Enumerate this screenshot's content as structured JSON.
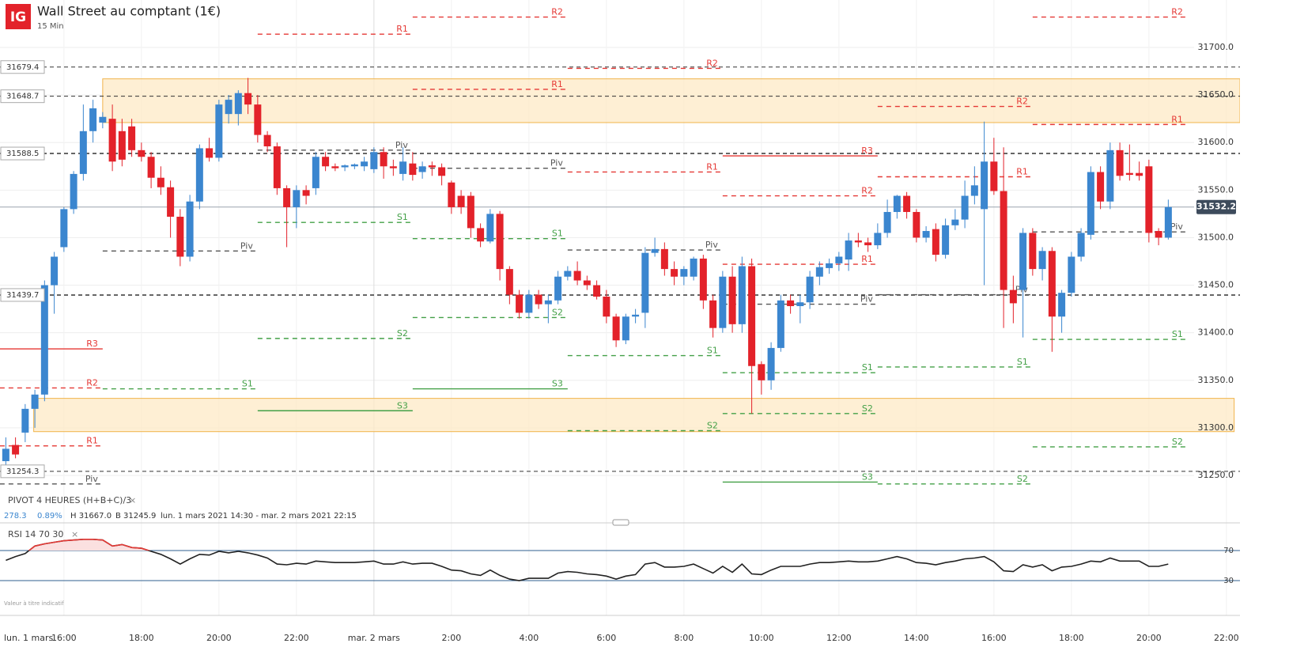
{
  "chart_data": {
    "type": "candlestick",
    "logo": "IG",
    "title": "Wall Street au comptant (1€)",
    "subtitle": "15 Min",
    "start_label": "lun. 1 mars",
    "indicator": "PIVOT 4 HEURES (H+B+C)/3",
    "stats": [
      "278.3",
      "0.89%",
      "H 31667.0",
      "B 31245.9",
      "lun. 1 mars 2021 14:30 - mar. 2 mars 2021 22:15"
    ],
    "footnote": "Valeur à titre indicatif",
    "colors": {
      "up": "#3b86cf",
      "down": "#e3222a",
      "R": "#e53935",
      "S": "#43a047",
      "P": "#555555"
    },
    "xlim": [
      14.35,
      46.35
    ],
    "xticks": [
      {
        "value": 16,
        "label": "16:00"
      },
      {
        "value": 18,
        "label": "18:00"
      },
      {
        "value": 20,
        "label": "20:00"
      },
      {
        "value": 22,
        "label": "22:00"
      },
      {
        "value": 24,
        "label": "mar. 2 mars"
      },
      {
        "value": 26,
        "label": "2:00"
      },
      {
        "value": 28,
        "label": "4:00"
      },
      {
        "value": 30,
        "label": "6:00"
      },
      {
        "value": 32,
        "label": "8:00"
      },
      {
        "value": 34,
        "label": "10:00"
      },
      {
        "value": 36,
        "label": "12:00"
      },
      {
        "value": 38,
        "label": "14:00"
      },
      {
        "value": 40,
        "label": "16:00"
      },
      {
        "value": 42,
        "label": "18:00"
      },
      {
        "value": 44,
        "label": "20:00"
      },
      {
        "value": 46,
        "label": "22:00"
      }
    ],
    "ylim": [
      31234.2,
      31749.9
    ],
    "yticks": [
      {
        "value": 31250,
        "label": "31250.0"
      },
      {
        "value": 31300,
        "label": "31300.0"
      },
      {
        "value": 31350,
        "label": "31350.0"
      },
      {
        "value": 31400,
        "label": "31400.0"
      },
      {
        "value": 31450,
        "label": "31450.0"
      },
      {
        "value": 31500,
        "label": "31500.0"
      },
      {
        "value": 31550,
        "label": "31550.0"
      },
      {
        "value": 31600,
        "label": "31600.0"
      },
      {
        "value": 31650,
        "label": "31650.0"
      },
      {
        "value": 31700,
        "label": "31700.0"
      }
    ],
    "grid": true,
    "x": [
      14.5,
      14.75,
      15,
      15.25,
      15.5,
      15.75,
      16,
      16.25,
      16.5,
      16.75,
      17,
      17.25,
      17.5,
      17.75,
      18,
      18.25,
      18.5,
      18.75,
      19,
      19.25,
      19.5,
      19.75,
      20,
      20.25,
      20.5,
      20.75,
      21,
      21.25,
      21.5,
      21.75,
      22,
      22.25,
      22.5,
      22.75,
      23,
      23.25,
      23.5,
      23.75,
      24,
      24.25,
      24.5,
      24.75,
      25,
      25.25,
      25.5,
      25.75,
      26,
      26.25,
      26.5,
      26.75,
      27,
      27.25,
      27.5,
      27.75,
      28,
      28.25,
      28.5,
      28.75,
      29,
      29.25,
      29.5,
      29.75,
      30,
      30.25,
      30.5,
      30.75,
      31,
      31.25,
      31.5,
      31.75,
      32,
      32.25,
      32.5,
      32.75,
      33,
      33.25,
      33.5,
      33.75,
      34,
      34.25,
      34.5,
      34.75,
      35,
      35.25,
      35.5,
      35.75,
      36,
      36.25,
      36.5,
      36.75,
      37,
      37.25,
      37.5,
      37.75,
      38,
      38.25,
      38.5,
      38.75,
      39,
      39.25,
      39.5,
      39.75,
      40,
      40.25,
      40.5,
      40.75,
      41,
      41.25,
      41.5,
      41.75,
      42,
      42.25,
      42.5,
      42.75,
      43,
      43.25,
      43.5,
      43.75,
      44,
      44.25,
      44.5
    ],
    "candles": [
      [
        31265,
        31290,
        31250,
        31278
      ],
      [
        31282,
        31290,
        31268,
        31272
      ],
      [
        31295,
        31325,
        31285,
        31320
      ],
      [
        31320,
        31340,
        31300,
        31335
      ],
      [
        31335,
        31455,
        31328,
        31450
      ],
      [
        31450,
        31485,
        31420,
        31480
      ],
      [
        31490,
        31532,
        31485,
        31530
      ],
      [
        31530,
        31570,
        31525,
        31567
      ],
      [
        31567,
        31640,
        31560,
        31612
      ],
      [
        31612,
        31645,
        31600,
        31636
      ],
      [
        31621,
        31632,
        31615,
        31627
      ],
      [
        31625,
        31640,
        31570,
        31580
      ],
      [
        31612,
        31625,
        31575,
        31582
      ],
      [
        31617,
        31625,
        31585,
        31592
      ],
      [
        31592,
        31600,
        31580,
        31585
      ],
      [
        31585,
        31590,
        31552,
        31563
      ],
      [
        31563,
        31575,
        31545,
        31553
      ],
      [
        31553,
        31560,
        31500,
        31522
      ],
      [
        31522,
        31530,
        31470,
        31480
      ],
      [
        31480,
        31545,
        31475,
        31538
      ],
      [
        31538,
        31598,
        31530,
        31594
      ],
      [
        31594,
        31605,
        31580,
        31584
      ],
      [
        31584,
        31645,
        31580,
        31640
      ],
      [
        31630,
        31650,
        31620,
        31645
      ],
      [
        31630,
        31655,
        31618,
        31652
      ],
      [
        31652,
        31668,
        31630,
        31640
      ],
      [
        31640,
        31650,
        31600,
        31608
      ],
      [
        31608,
        31612,
        31590,
        31596
      ],
      [
        31596,
        31600,
        31545,
        31552
      ],
      [
        31552,
        31555,
        31490,
        31532
      ],
      [
        31532,
        31555,
        31510,
        31550
      ],
      [
        31550,
        31555,
        31535,
        31544
      ],
      [
        31552,
        31590,
        31545,
        31585
      ],
      [
        31585,
        31590,
        31570,
        31575
      ],
      [
        31575,
        31578,
        31570,
        31573
      ],
      [
        31574,
        31577,
        31570,
        31576
      ],
      [
        31575,
        31578,
        31572,
        31577
      ],
      [
        31575,
        31585,
        31570,
        31580
      ],
      [
        31572,
        31595,
        31568,
        31590
      ],
      [
        31590,
        31595,
        31562,
        31575
      ],
      [
        31575,
        31582,
        31565,
        31573
      ],
      [
        31567,
        31595,
        31560,
        31580
      ],
      [
        31578,
        31590,
        31560,
        31566
      ],
      [
        31569,
        31580,
        31562,
        31575
      ],
      [
        31576,
        31580,
        31565,
        31574
      ],
      [
        31574,
        31578,
        31555,
        31565
      ],
      [
        31558,
        31560,
        31525,
        31532
      ],
      [
        31544,
        31550,
        31525,
        31532
      ],
      [
        31544,
        31548,
        31500,
        31510
      ],
      [
        31510,
        31515,
        31490,
        31496
      ],
      [
        31496,
        31530,
        31494,
        31525
      ],
      [
        31525,
        31528,
        31455,
        31467
      ],
      [
        31467,
        31470,
        31430,
        31440
      ],
      [
        31440,
        31445,
        31415,
        31421
      ],
      [
        31421,
        31445,
        31415,
        31440
      ],
      [
        31440,
        31445,
        31425,
        31430
      ],
      [
        31430,
        31440,
        31410,
        31434
      ],
      [
        31434,
        31465,
        31430,
        31459
      ],
      [
        31459,
        31470,
        31455,
        31465
      ],
      [
        31465,
        31475,
        31450,
        31455
      ],
      [
        31455,
        31460,
        31445,
        31450
      ],
      [
        31450,
        31455,
        31435,
        31438
      ],
      [
        31438,
        31445,
        31410,
        31417
      ],
      [
        31417,
        31420,
        31385,
        31392
      ],
      [
        31392,
        31420,
        31388,
        31417
      ],
      [
        31417,
        31425,
        31410,
        31419
      ],
      [
        31421,
        31490,
        31405,
        31484
      ],
      [
        31484,
        31500,
        31480,
        31488
      ],
      [
        31488,
        31495,
        31460,
        31467
      ],
      [
        31467,
        31475,
        31450,
        31459
      ],
      [
        31459,
        31470,
        31450,
        31467
      ],
      [
        31459,
        31480,
        31455,
        31478
      ],
      [
        31478,
        31482,
        31425,
        31434
      ],
      [
        31434,
        31440,
        31395,
        31405
      ],
      [
        31405,
        31465,
        31400,
        31459
      ],
      [
        31459,
        31470,
        31400,
        31409
      ],
      [
        31409,
        31480,
        31400,
        31470
      ],
      [
        31470,
        31478,
        31315,
        31365
      ],
      [
        31367,
        31370,
        31335,
        31350
      ],
      [
        31350,
        31390,
        31340,
        31384
      ],
      [
        31384,
        31440,
        31380,
        31434
      ],
      [
        31434,
        31440,
        31420,
        31428
      ],
      [
        31428,
        31440,
        31410,
        31432
      ],
      [
        31432,
        31465,
        31425,
        31459
      ],
      [
        31459,
        31475,
        31450,
        31469
      ],
      [
        31468,
        31478,
        31462,
        31473
      ],
      [
        31473,
        31485,
        31465,
        31480
      ],
      [
        31477,
        31505,
        31465,
        31497
      ],
      [
        31497,
        31505,
        31490,
        31495
      ],
      [
        31495,
        31500,
        31485,
        31492
      ],
      [
        31492,
        31515,
        31488,
        31505
      ],
      [
        31505,
        31540,
        31500,
        31527
      ],
      [
        31527,
        31545,
        31520,
        31544
      ],
      [
        31544,
        31548,
        31520,
        31527
      ],
      [
        31527,
        31530,
        31495,
        31500
      ],
      [
        31500,
        31512,
        31495,
        31507
      ],
      [
        31509,
        31515,
        31475,
        31482
      ],
      [
        31482,
        31520,
        31478,
        31513
      ],
      [
        31513,
        31530,
        31508,
        31519
      ],
      [
        31519,
        31560,
        31510,
        31544
      ],
      [
        31544,
        31575,
        31535,
        31555
      ],
      [
        31530,
        31622,
        31450,
        31580
      ],
      [
        31580,
        31605,
        31545,
        31549
      ],
      [
        31549,
        31595,
        31405,
        31445
      ],
      [
        31445,
        31460,
        31410,
        31431
      ],
      [
        31445,
        31510,
        31395,
        31505
      ],
      [
        31505,
        31510,
        31460,
        31467
      ],
      [
        31467,
        31490,
        31455,
        31486
      ],
      [
        31486,
        31490,
        31380,
        31417
      ],
      [
        31417,
        31445,
        31400,
        31442
      ],
      [
        31442,
        31485,
        31438,
        31480
      ],
      [
        31480,
        31510,
        31475,
        31505
      ],
      [
        31503,
        31575,
        31498,
        31569
      ],
      [
        31569,
        31575,
        31530,
        31538
      ],
      [
        31538,
        31600,
        31530,
        31592
      ],
      [
        31592,
        31600,
        31560,
        31565
      ],
      [
        31568,
        31598,
        31560,
        31566
      ],
      [
        31568,
        31580,
        31560,
        31565
      ],
      [
        31575,
        31582,
        31495,
        31505
      ],
      [
        31507,
        31510,
        31492,
        31500
      ],
      [
        31500,
        31540,
        31498,
        31532.2
      ]
    ],
    "zones": [
      {
        "from": 31621,
        "to": 31667,
        "start": 17,
        "end": 46.35
      },
      {
        "from": 31296,
        "to": 31331,
        "start": 15.22,
        "end": 46.2
      }
    ],
    "reference_lines": [
      31679.4,
      31648.7,
      31588.5,
      31439.7,
      31254.3
    ],
    "pivots": [
      {
        "start": 13,
        "end": 17,
        "levels": [
          {
            "name": "R3",
            "value": 31383
          },
          {
            "name": "R2",
            "value": 31342
          },
          {
            "name": "R1",
            "value": 31281
          },
          {
            "name": "Piv",
            "value": 31241
          }
        ]
      },
      {
        "start": 17,
        "end": 21,
        "levels": [
          {
            "name": "Piv",
            "value": 31486
          },
          {
            "name": "S1",
            "value": 31341
          }
        ]
      },
      {
        "start": 21,
        "end": 25,
        "levels": [
          {
            "name": "R1",
            "value": 31714
          },
          {
            "name": "Piv",
            "value": 31592
          },
          {
            "name": "S1",
            "value": 31516
          },
          {
            "name": "S2",
            "value": 31394
          },
          {
            "name": "S3",
            "value": 31318
          }
        ]
      },
      {
        "start": 25,
        "end": 29,
        "levels": [
          {
            "name": "R2",
            "value": 31732
          },
          {
            "name": "R1",
            "value": 31656
          },
          {
            "name": "Piv",
            "value": 31573
          },
          {
            "name": "S1",
            "value": 31499
          },
          {
            "name": "S2",
            "value": 31416
          },
          {
            "name": "S3",
            "value": 31341
          }
        ]
      },
      {
        "start": 29,
        "end": 33,
        "levels": [
          {
            "name": "R2",
            "value": 31678
          },
          {
            "name": "R1",
            "value": 31569
          },
          {
            "name": "Piv",
            "value": 31487
          },
          {
            "name": "S1",
            "value": 31376
          },
          {
            "name": "S2",
            "value": 31297
          }
        ]
      },
      {
        "start": 33,
        "end": 37,
        "levels": [
          {
            "name": "R3",
            "value": 31586
          },
          {
            "name": "R2",
            "value": 31544
          },
          {
            "name": "R1",
            "value": 31472
          },
          {
            "name": "Piv",
            "value": 31430
          },
          {
            "name": "S1",
            "value": 31358
          },
          {
            "name": "S2",
            "value": 31315
          },
          {
            "name": "S3",
            "value": 31243
          }
        ]
      },
      {
        "start": 37,
        "end": 41,
        "levels": [
          {
            "name": "R2",
            "value": 31638
          },
          {
            "name": "R1",
            "value": 31564
          },
          {
            "name": "Piv",
            "value": 31440
          },
          {
            "name": "S1",
            "value": 31364
          },
          {
            "name": "S2",
            "value": 31241
          }
        ]
      },
      {
        "start": 41,
        "end": 45,
        "levels": [
          {
            "name": "R2",
            "value": 31732
          },
          {
            "name": "R1",
            "value": 31619
          },
          {
            "name": "Piv",
            "value": 31506
          },
          {
            "name": "S1",
            "value": 31393
          },
          {
            "name": "S2",
            "value": 31280
          }
        ]
      }
    ],
    "rsi": {
      "label": "RSI 14 70 30",
      "ylim": [
        0,
        100
      ],
      "yticks": [
        30,
        70
      ],
      "line_color": "#222222",
      "over_color": "#e53935",
      "values": [
        57,
        62,
        66,
        76,
        79,
        81,
        83,
        84,
        85,
        85,
        84,
        76,
        78,
        74,
        73,
        69,
        65,
        59,
        52,
        59,
        65,
        64,
        69,
        67,
        69,
        67,
        64,
        60,
        52,
        51,
        53,
        52,
        56,
        55,
        54,
        54,
        54,
        55,
        56,
        52,
        52,
        55,
        52,
        53,
        53,
        49,
        44,
        43,
        39,
        37,
        44,
        37,
        32,
        30,
        33,
        33,
        33,
        40,
        42,
        41,
        39,
        38,
        36,
        32,
        36,
        38,
        52,
        54,
        48,
        48,
        49,
        52,
        46,
        40,
        49,
        41,
        52,
        39,
        38,
        44,
        49,
        49,
        49,
        52,
        54,
        54,
        55,
        56,
        55,
        55,
        56,
        59,
        62,
        59,
        54,
        53,
        51,
        54,
        56,
        59,
        60,
        62,
        55,
        43,
        42,
        51,
        48,
        51,
        43,
        48,
        49,
        52,
        56,
        55,
        60,
        56,
        56,
        56,
        49,
        49,
        52
      ]
    }
  }
}
